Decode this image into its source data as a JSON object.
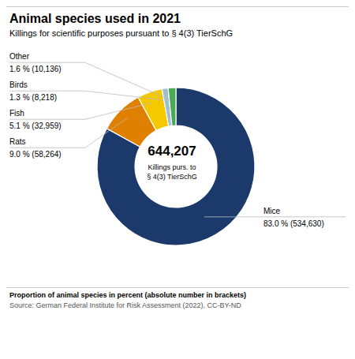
{
  "chart_data": {
    "type": "pie",
    "title": "Animal species used in 2021",
    "subtitle": "Killings for scientific purposes pursuant to § 4(3) TierSchG",
    "categories": [
      "Mice",
      "Rats",
      "Fish",
      "Birds",
      "Other"
    ],
    "values": [
      534630,
      58264,
      32959,
      8218,
      10136
    ],
    "value_labels": [
      "83.0 % (534,630)",
      "9.0 % (58,264)",
      "5.1 % (32,959)",
      "1.3 % (8,218)",
      "1.6 % (10,136)"
    ],
    "colors": [
      "#1b3a6b",
      "#e08000",
      "#f5c800",
      "#a0bfcc",
      "#4aaa55"
    ],
    "data_labels": true,
    "annotations": [
      "644,207",
      "Killings purs. to\n§ 4(3) TierSchG",
      "Proportion of animal species in percent (absolute number in brackets)",
      "Source: German Federal Institute for Risk Assessment (2022), CC-BY-ND"
    ]
  }
}
